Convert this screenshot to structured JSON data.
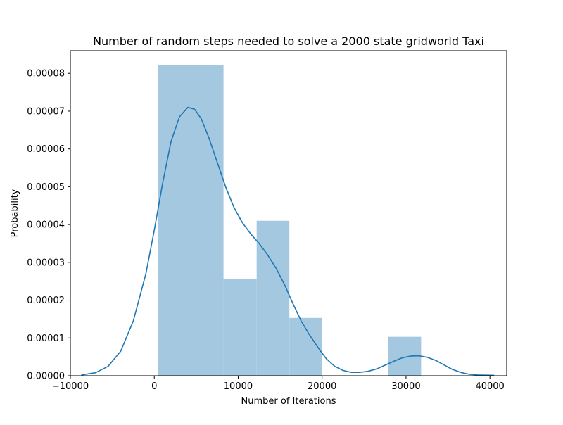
{
  "chart_data": {
    "type": "histogram",
    "title": "Number of random steps needed to solve a 2000 state gridworld Taxi",
    "xlabel": "Number of Iterations",
    "ylabel": "Probability",
    "xlim": [
      -10000,
      42000
    ],
    "ylim": [
      0,
      8.6e-05
    ],
    "xticks": [
      -10000,
      0,
      10000,
      20000,
      30000,
      40000
    ],
    "xtick_labels": [
      "−10000",
      "0",
      "10000",
      "20000",
      "30000",
      "40000"
    ],
    "yticks": [
      0,
      1e-05,
      2e-05,
      3e-05,
      4e-05,
      5e-05,
      6e-05,
      7e-05,
      8e-05
    ],
    "ytick_labels": [
      "0.00000",
      "0.00001",
      "0.00002",
      "0.00003",
      "0.00004",
      "0.00005",
      "0.00006",
      "0.00007",
      "0.00008"
    ],
    "grid": false,
    "legend": "none",
    "series": [
      {
        "kind": "histogram",
        "color": "#a5c8e1",
        "bins": [
          {
            "x0": 450,
            "x1": 8250,
            "y": 8.21e-05
          },
          {
            "x0": 8250,
            "x1": 12200,
            "y": 2.55e-05
          },
          {
            "x0": 12200,
            "x1": 16100,
            "y": 4.1e-05
          },
          {
            "x0": 16100,
            "x1": 20000,
            "y": 1.53e-05
          },
          {
            "x0": 20000,
            "x1": 27900,
            "y": 0
          },
          {
            "x0": 27900,
            "x1": 31800,
            "y": 1.03e-05
          }
        ]
      },
      {
        "kind": "kde",
        "color": "#1f77b4",
        "x": [
          -8700,
          -7000,
          -5500,
          -4000,
          -2500,
          -1000,
          0,
          1000,
          2000,
          3000,
          4000,
          4800,
          5600,
          6500,
          7500,
          8500,
          9500,
          10500,
          11500,
          12500,
          13500,
          14500,
          15500,
          16500,
          17500,
          18500,
          19500,
          20500,
          21500,
          22500,
          23500,
          24500,
          25500,
          26500,
          27500,
          28500,
          29500,
          30500,
          31500,
          32500,
          33500,
          34500,
          35500,
          36500,
          37500,
          38500,
          40500
        ],
        "y": [
          2e-07,
          8e-07,
          2.5e-06,
          6.5e-06,
          1.45e-05,
          2.7e-05,
          3.85e-05,
          5.1e-05,
          6.2e-05,
          6.85e-05,
          7.1e-05,
          7.05e-05,
          6.8e-05,
          6.3e-05,
          5.65e-05,
          5e-05,
          4.45e-05,
          4.05e-05,
          3.75e-05,
          3.5e-05,
          3.2e-05,
          2.85e-05,
          2.42e-05,
          1.92e-05,
          1.45e-05,
          1.08e-05,
          7.5e-06,
          4.5e-06,
          2.5e-06,
          1.4e-06,
          9e-07,
          9e-07,
          1.2e-06,
          1.8e-06,
          2.8e-06,
          3.8e-06,
          4.7e-06,
          5.2e-06,
          5.3e-06,
          4.9e-06,
          4.1e-06,
          2.9e-06,
          1.7e-06,
          9e-07,
          4e-07,
          2e-07,
          1e-07
        ]
      }
    ]
  }
}
